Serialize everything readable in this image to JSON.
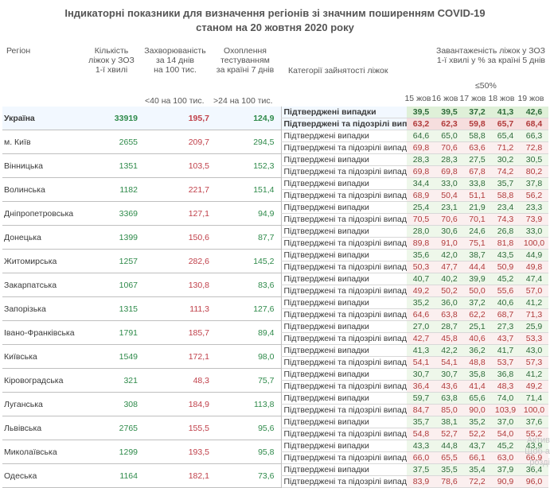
{
  "title_line1": "Індикаторні показники для визначення регіонів зі значним поширенням COVID-19",
  "title_line2": "станом на 20 жовтня 2020 року",
  "headers": {
    "region": "Регіон",
    "beds": [
      "Кількість",
      "ліжок у ЗОЗ",
      "1-ї хвилі"
    ],
    "incidence": [
      "Захворюваність",
      "за 14 днів",
      "на 100 тис."
    ],
    "testing": [
      "Охоплення",
      "тестуванням",
      "за країні 7 днів"
    ],
    "category": "Категорії зайнятості ліжок",
    "occupancy": [
      "Завантаженість ліжок у ЗОЗ",
      "1-ї хвилі у % за країні 5 днів"
    ],
    "incidence_threshold": "<40 на 100 тис.",
    "testing_threshold": ">24 на 100 тис.",
    "occupancy_threshold": "≤50%",
    "days": [
      "15 жов",
      "16 жов",
      "17 жов",
      "18 жов",
      "19 жов"
    ]
  },
  "categories": [
    "Підтверджені випадки",
    "Підтверджені та підозрілі випадки"
  ],
  "regions": [
    {
      "name": "Україна",
      "beds": "33919",
      "incidence": "195,7",
      "testing": "124,9",
      "confirmed": [
        "39,5",
        "39,5",
        "37,2",
        "41,3",
        "42,6"
      ],
      "suspected": [
        "63,2",
        "62,3",
        "59,8",
        "65,7",
        "68,4"
      ]
    },
    {
      "name": "м. Київ",
      "beds": "2655",
      "incidence": "209,7",
      "testing": "294,5",
      "confirmed": [
        "64,6",
        "65,0",
        "58,8",
        "65,4",
        "66,3"
      ],
      "suspected": [
        "69,8",
        "70,6",
        "63,6",
        "71,2",
        "72,8"
      ]
    },
    {
      "name": "Вінницька",
      "beds": "1351",
      "incidence": "103,5",
      "testing": "152,3",
      "confirmed": [
        "28,3",
        "28,3",
        "27,5",
        "30,2",
        "30,5"
      ],
      "suspected": [
        "69,8",
        "69,8",
        "67,8",
        "74,2",
        "80,2"
      ]
    },
    {
      "name": "Волинська",
      "beds": "1182",
      "incidence": "221,7",
      "testing": "151,4",
      "confirmed": [
        "34,4",
        "33,0",
        "33,8",
        "35,7",
        "37,8"
      ],
      "suspected": [
        "68,9",
        "50,4",
        "51,1",
        "58,8",
        "56,2"
      ]
    },
    {
      "name": "Дніпропетровська",
      "beds": "3369",
      "incidence": "127,1",
      "testing": "94,9",
      "confirmed": [
        "25,4",
        "23,1",
        "21,9",
        "23,4",
        "23,3"
      ],
      "suspected": [
        "70,5",
        "70,6",
        "70,1",
        "74,3",
        "73,9"
      ]
    },
    {
      "name": "Донецька",
      "beds": "1399",
      "incidence": "150,6",
      "testing": "87,7",
      "confirmed": [
        "28,0",
        "30,6",
        "24,6",
        "26,8",
        "33,0"
      ],
      "suspected": [
        "89,8",
        "91,0",
        "75,1",
        "81,8",
        "100,0"
      ]
    },
    {
      "name": "Житомирська",
      "beds": "1257",
      "incidence": "282,6",
      "testing": "145,2",
      "confirmed": [
        "35,6",
        "42,0",
        "38,7",
        "43,5",
        "44,9"
      ],
      "suspected": [
        "50,3",
        "47,7",
        "44,4",
        "50,9",
        "49,8"
      ]
    },
    {
      "name": "Закарпатська",
      "beds": "1067",
      "incidence": "130,8",
      "testing": "83,6",
      "confirmed": [
        "40,7",
        "40,2",
        "39,9",
        "45,2",
        "47,4"
      ],
      "suspected": [
        "49,2",
        "50,2",
        "50,0",
        "55,6",
        "57,0"
      ]
    },
    {
      "name": "Запорізька",
      "beds": "1315",
      "incidence": "111,3",
      "testing": "127,6",
      "confirmed": [
        "35,2",
        "36,0",
        "37,2",
        "40,6",
        "41,2"
      ],
      "suspected": [
        "64,6",
        "63,8",
        "62,2",
        "68,7",
        "71,3"
      ]
    },
    {
      "name": "Івано-Франківська",
      "beds": "1791",
      "incidence": "185,7",
      "testing": "89,4",
      "confirmed": [
        "27,0",
        "28,7",
        "25,1",
        "27,3",
        "25,9"
      ],
      "suspected": [
        "42,7",
        "45,8",
        "40,6",
        "43,7",
        "53,3"
      ]
    },
    {
      "name": "Київська",
      "beds": "1549",
      "incidence": "172,1",
      "testing": "98,0",
      "confirmed": [
        "41,3",
        "42,2",
        "36,2",
        "41,7",
        "43,0"
      ],
      "suspected": [
        "54,1",
        "54,1",
        "48,8",
        "53,7",
        "57,3"
      ]
    },
    {
      "name": "Кіровоградська",
      "beds": "321",
      "incidence": "48,3",
      "testing": "75,7",
      "confirmed": [
        "30,7",
        "30,7",
        "35,8",
        "36,8",
        "41,2"
      ],
      "suspected": [
        "36,4",
        "43,6",
        "41,4",
        "48,3",
        "49,2"
      ]
    },
    {
      "name": "Луганська",
      "beds": "308",
      "incidence": "184,9",
      "testing": "113,8",
      "confirmed": [
        "59,7",
        "63,8",
        "65,6",
        "74,0",
        "71,4"
      ],
      "suspected": [
        "84,7",
        "85,0",
        "90,0",
        "103,9",
        "100,0"
      ]
    },
    {
      "name": "Львівська",
      "beds": "2765",
      "incidence": "155,5",
      "testing": "95,6",
      "confirmed": [
        "35,7",
        "38,1",
        "35,2",
        "37,0",
        "37,6"
      ],
      "suspected": [
        "54,8",
        "52,7",
        "52,2",
        "54,0",
        "55,2"
      ]
    },
    {
      "name": "Миколаївська",
      "beds": "1299",
      "incidence": "193,5",
      "testing": "95,8",
      "confirmed": [
        "43,3",
        "44,8",
        "43,7",
        "45,2",
        "43,9"
      ],
      "suspected": [
        "66,0",
        "65,5",
        "66,1",
        "63,0",
        "66,9"
      ]
    },
    {
      "name": "Одеська",
      "beds": "1164",
      "incidence": "182,1",
      "testing": "73,6",
      "confirmed": [
        "37,5",
        "35,5",
        "35,4",
        "37,9",
        "36,4"
      ],
      "suspected": [
        "83,9",
        "78,6",
        "72,2",
        "90,9",
        "96,0"
      ]
    }
  ],
  "watermark": [
    "Актив",
    "Щоб а",
    "розді"
  ]
}
